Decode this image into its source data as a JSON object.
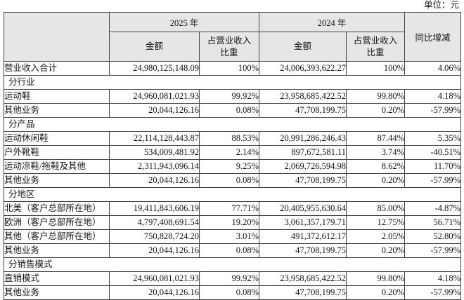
{
  "unit_label": "单位：元",
  "table": {
    "header": {
      "col_2025": "2025 年",
      "col_2024": "2024 年",
      "amount": "金额",
      "ratio_line1": "占营业收入",
      "ratio_line2": "比重",
      "yoy": "同比增减"
    },
    "rows": [
      {
        "type": "data",
        "label": "营业收入合计",
        "a2025": "24,980,125,148.09",
        "p2025": "100%",
        "a2024": "24,006,393,622.27",
        "p2024": "100%",
        "yoy": "4.06%"
      },
      {
        "type": "section",
        "label": "分行业"
      },
      {
        "type": "data",
        "label": "运动鞋",
        "a2025": "24,960,081,021.93",
        "p2025": "99.92%",
        "a2024": "23,958,685,422.52",
        "p2024": "99.80%",
        "yoy": "4.18%"
      },
      {
        "type": "data",
        "label": "其他业务",
        "a2025": "20,044,126.16",
        "p2025": "0.08%",
        "a2024": "47,708,199.75",
        "p2024": "0.20%",
        "yoy": "-57.99%"
      },
      {
        "type": "section",
        "label": "分产品"
      },
      {
        "type": "data",
        "label": "运动休闲鞋",
        "a2025": "22,114,128,443.87",
        "p2025": "88.53%",
        "a2024": "20,991,286,246.43",
        "p2024": "87.44%",
        "yoy": "5.35%"
      },
      {
        "type": "data",
        "label": "户外靴鞋",
        "a2025": "534,009,481.92",
        "p2025": "2.14%",
        "a2024": "897,672,581.11",
        "p2024": "3.74%",
        "yoy": "-40.51%"
      },
      {
        "type": "data",
        "label": "运动凉鞋/拖鞋及其他",
        "a2025": "2,311,943,096.14",
        "p2025": "9.25%",
        "a2024": "2,069,726,594.98",
        "p2024": "8.62%",
        "yoy": "11.70%"
      },
      {
        "type": "data",
        "label": "其他业务",
        "a2025": "20,044,126.16",
        "p2025": "0.08%",
        "a2024": "47,708,199.75",
        "p2024": "0.20%",
        "yoy": "-57.99%"
      },
      {
        "type": "section",
        "label": "分地区"
      },
      {
        "type": "data",
        "label": "北美（客户总部所在地）",
        "a2025": "19,411,843,606.19",
        "p2025": "77.71%",
        "a2024": "20,405,955,630.64",
        "p2024": "85.00%",
        "yoy": "-4.87%"
      },
      {
        "type": "data",
        "label": "欧洲（客户总部所在地）",
        "a2025": "4,797,408,691.54",
        "p2025": "19.20%",
        "a2024": "3,061,357,179.71",
        "p2024": "12.75%",
        "yoy": "56.71%"
      },
      {
        "type": "data",
        "label": "其他（客户总部所在地）",
        "a2025": "750,828,724.20",
        "p2025": "3.01%",
        "a2024": "491,372,612.17",
        "p2024": "2.05%",
        "yoy": "52.80%"
      },
      {
        "type": "data",
        "label": "其他业务",
        "a2025": "20,044,126.16",
        "p2025": "0.08%",
        "a2024": "47,708,199.75",
        "p2024": "0.20%",
        "yoy": "-57.99%"
      },
      {
        "type": "section",
        "label": "分销售模式"
      },
      {
        "type": "data",
        "label": "直销模式",
        "a2025": "24,960,081,021.93",
        "p2025": "99.92%",
        "a2024": "23,958,685,422.52",
        "p2024": "99.80%",
        "yoy": "4.18%"
      },
      {
        "type": "data",
        "label": "其他业务",
        "a2025": "20,044,126.16",
        "p2025": "0.08%",
        "a2024": "47,708,199.75",
        "p2024": "0.20%",
        "yoy": "-57.99%"
      }
    ]
  }
}
